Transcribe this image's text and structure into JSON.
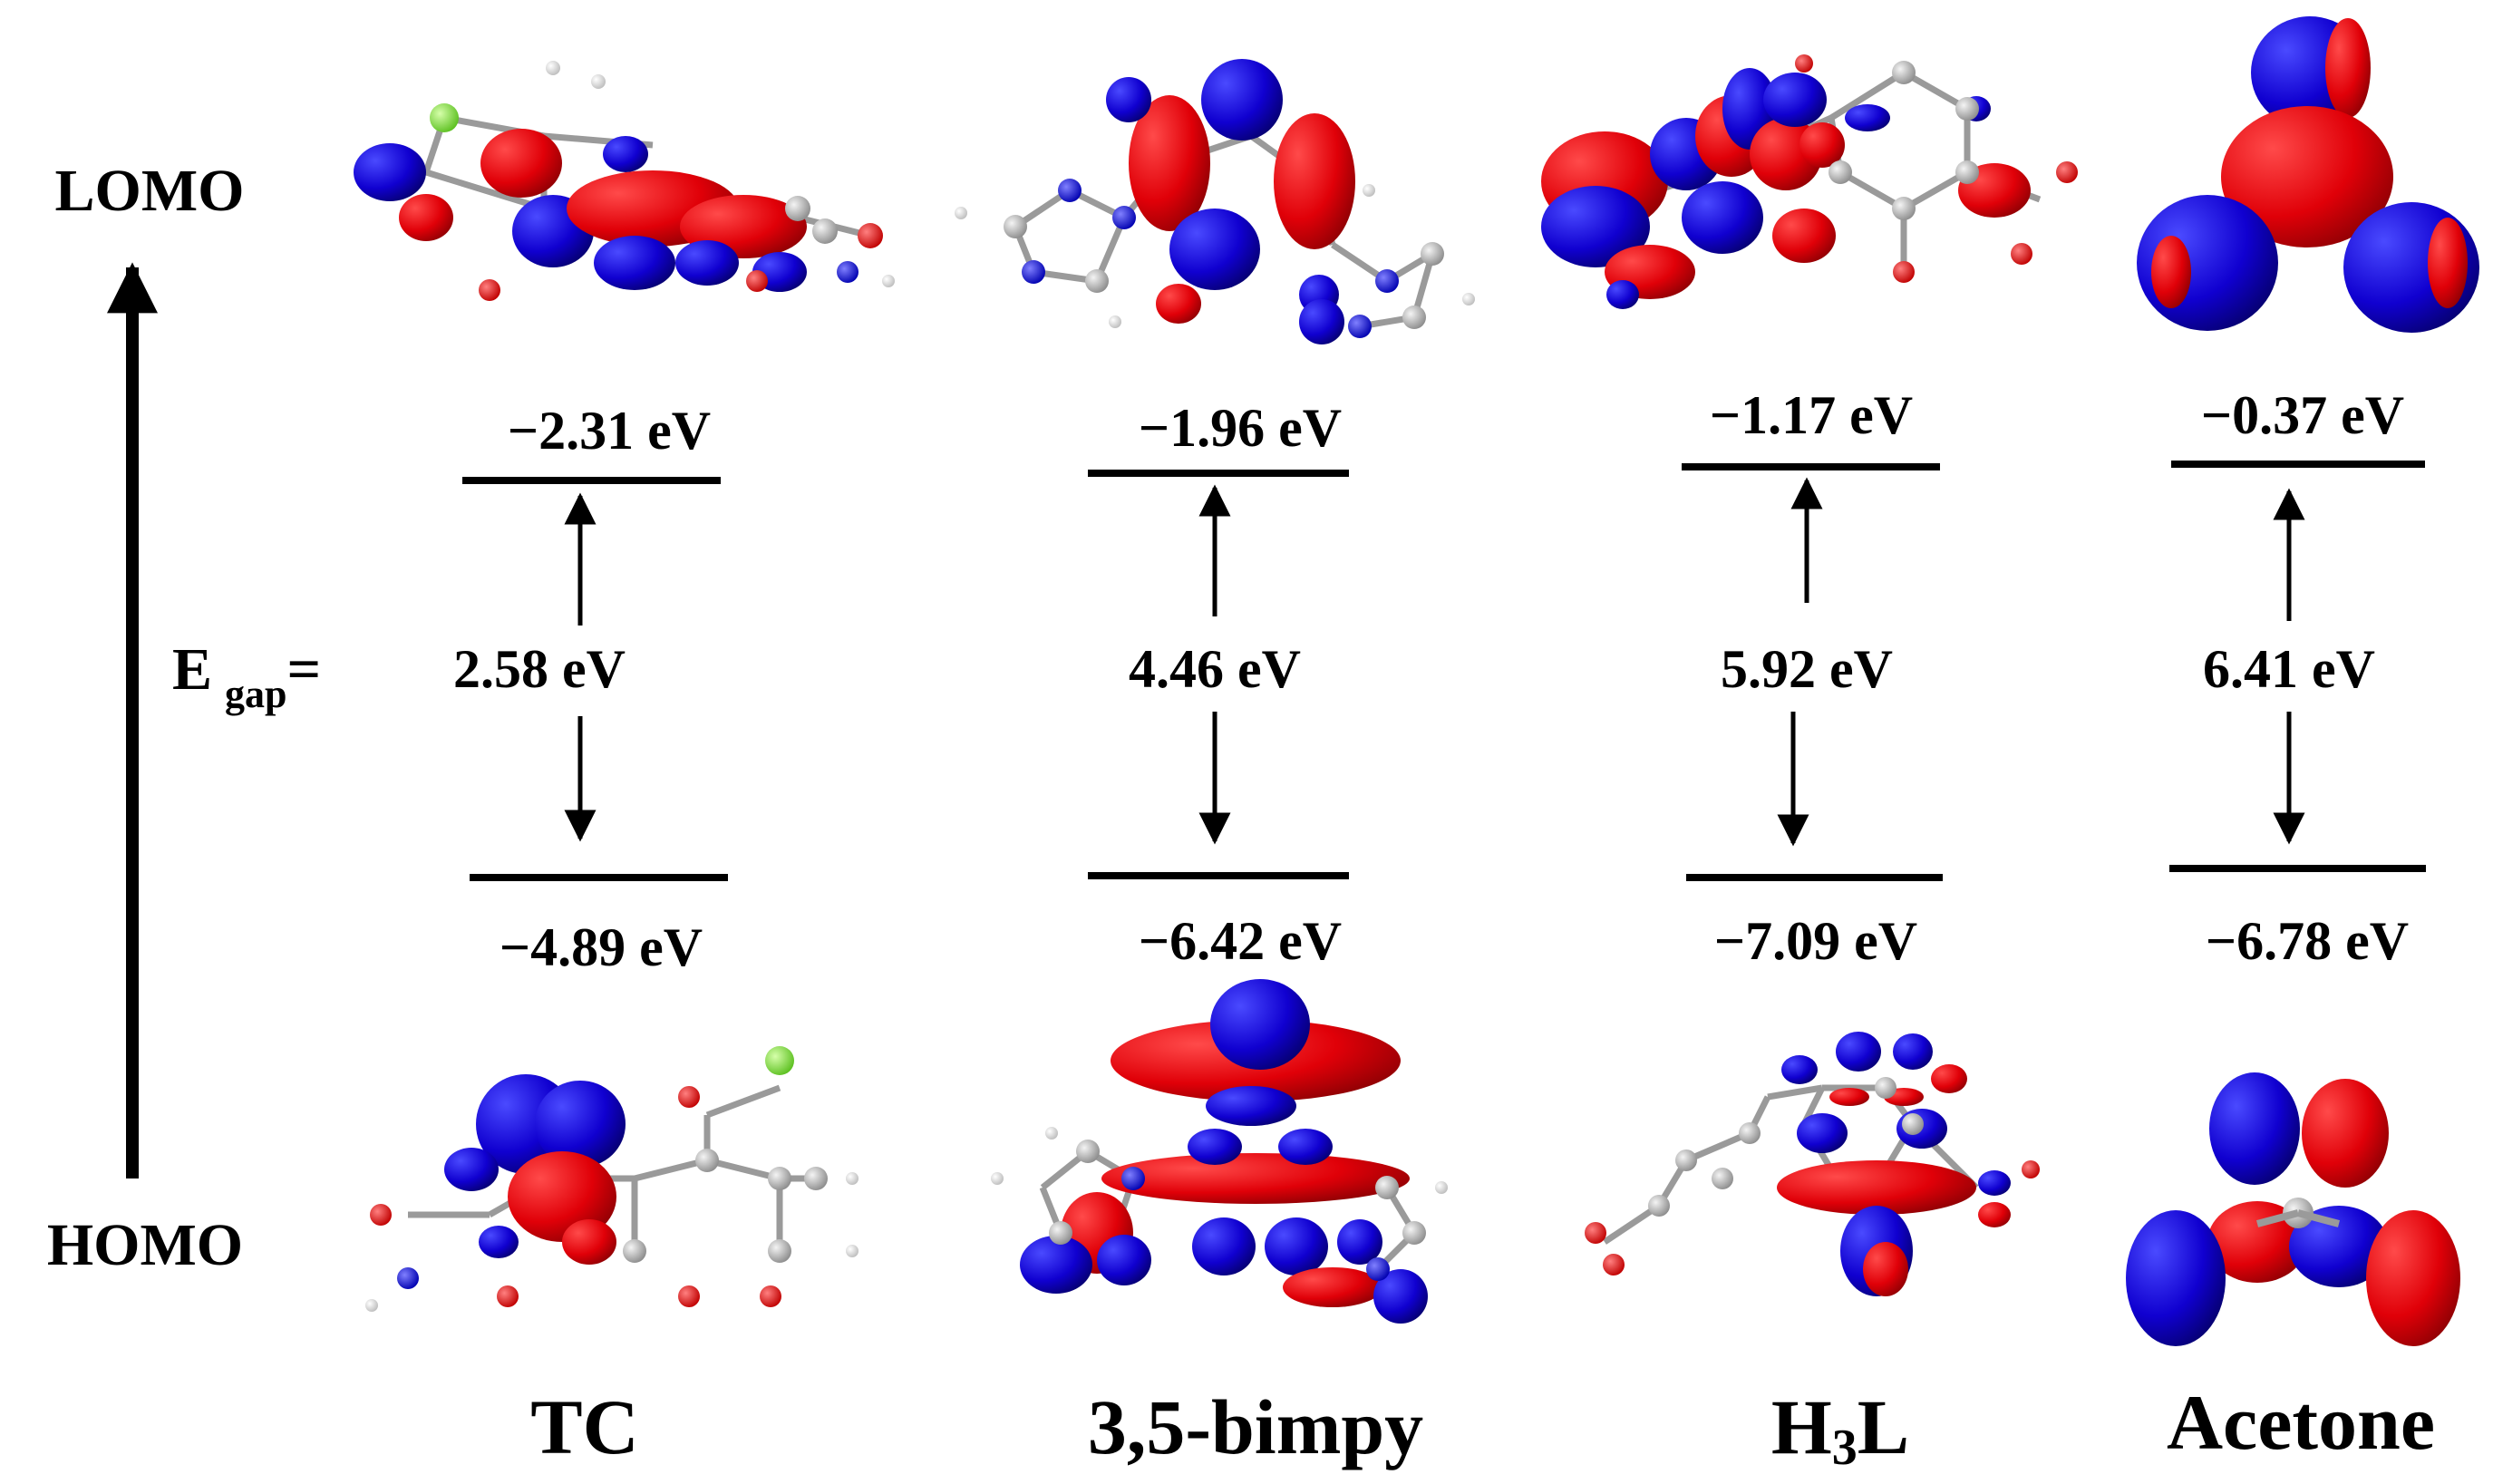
{
  "axis": {
    "top_label": "LOMO",
    "bottom_label": "HOMO"
  },
  "gap_label": {
    "main": "E",
    "sub": "gap",
    "suffix": "="
  },
  "molecules": [
    {
      "name": "TC",
      "name_parts": [
        {
          "t": "TC"
        }
      ],
      "lumo": "−2.31 eV",
      "homo": "−4.89 eV",
      "gap": "2.58 eV"
    },
    {
      "name": "3,5-bimpy",
      "name_parts": [
        {
          "t": "3,5-bimpy"
        }
      ],
      "lumo": "−1.96 eV",
      "homo": "−6.42 eV",
      "gap": "4.46 eV"
    },
    {
      "name": "H3L",
      "name_parts": [
        {
          "t": "H"
        },
        {
          "t": "3",
          "sub": true
        },
        {
          "t": "L"
        }
      ],
      "lumo": "−1.17 eV",
      "homo": "−7.09 eV",
      "gap": "5.92 eV"
    },
    {
      "name": "Acetone",
      "name_parts": [
        {
          "t": "Acetone"
        }
      ],
      "lumo": "−0.37 eV",
      "homo": "−6.78 eV",
      "gap": "6.41 eV"
    }
  ],
  "colors": {
    "lobe_positive": "#e8000b",
    "lobe_negative": "#1200d6",
    "atom_carbon": "#a9a9a9",
    "atom_oxygen": "#e00000",
    "atom_nitrogen": "#1a1aff",
    "atom_hydrogen": "#f2f2f2",
    "atom_chlorine": "#7fe03a"
  }
}
